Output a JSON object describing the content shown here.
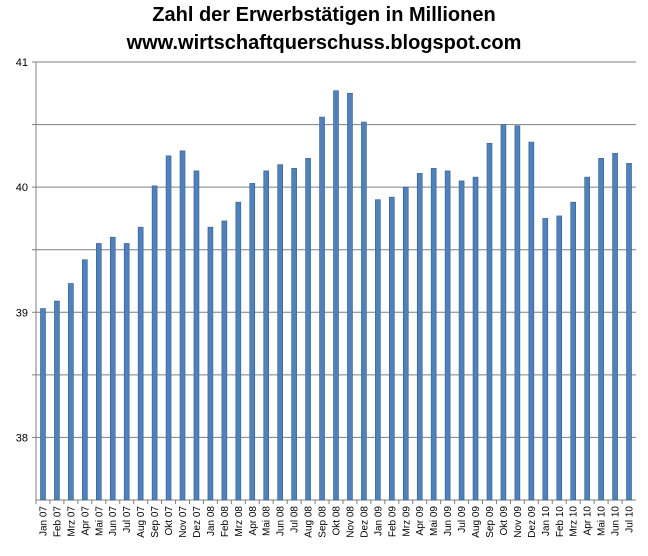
{
  "chart_data": {
    "type": "bar",
    "title": "Zahl der Erwerbstätigen in Millionen",
    "subtitle": "www.wirtschaftquerschuss.blogspot.com",
    "xlabel": "",
    "ylabel": "",
    "ylim": [
      37.5,
      41
    ],
    "yticks": [
      "41",
      "40",
      "39",
      "38"
    ],
    "ytick_values": [
      41,
      40,
      39,
      38
    ],
    "grid": true,
    "bar_color": "#4F81BD",
    "categories": [
      "Jan 07",
      "Feb 07",
      "Mrz 07",
      "Apr 07",
      "Mai 07",
      "Jun 07",
      "Jul 07",
      "Aug 07",
      "Sep 07",
      "Okt 07",
      "Nov 07",
      "Dez 07",
      "Jan 08",
      "Feb 08",
      "Mrz 08",
      "Apr 08",
      "Mai 08",
      "Jun 08",
      "Jul 08",
      "Aug 08",
      "Sep 08",
      "Okt 08",
      "Nov 08",
      "Dez 08",
      "Jan 09",
      "Feb 09",
      "Mrz 09",
      "Apr 09",
      "Mai 09",
      "Jun 09",
      "Jul 09",
      "Aug 09",
      "Sep 09",
      "Okt 09",
      "Nov 09",
      "Dez 09",
      "Jan 10",
      "Feb 10",
      "Mrz 10",
      "Apr 10",
      "Mai 10",
      "Jun 10",
      "Jul 10"
    ],
    "values": [
      39.03,
      39.09,
      39.23,
      39.42,
      39.55,
      39.6,
      39.55,
      39.68,
      40.01,
      40.25,
      40.29,
      40.13,
      39.68,
      39.73,
      39.88,
      40.03,
      40.13,
      40.18,
      40.15,
      40.23,
      40.56,
      40.77,
      40.75,
      40.52,
      39.9,
      39.92,
      40.0,
      40.11,
      40.15,
      40.13,
      40.05,
      40.08,
      40.35,
      40.5,
      40.49,
      40.36,
      39.75,
      39.77,
      39.88,
      40.08,
      40.23,
      40.27,
      40.19
    ]
  }
}
